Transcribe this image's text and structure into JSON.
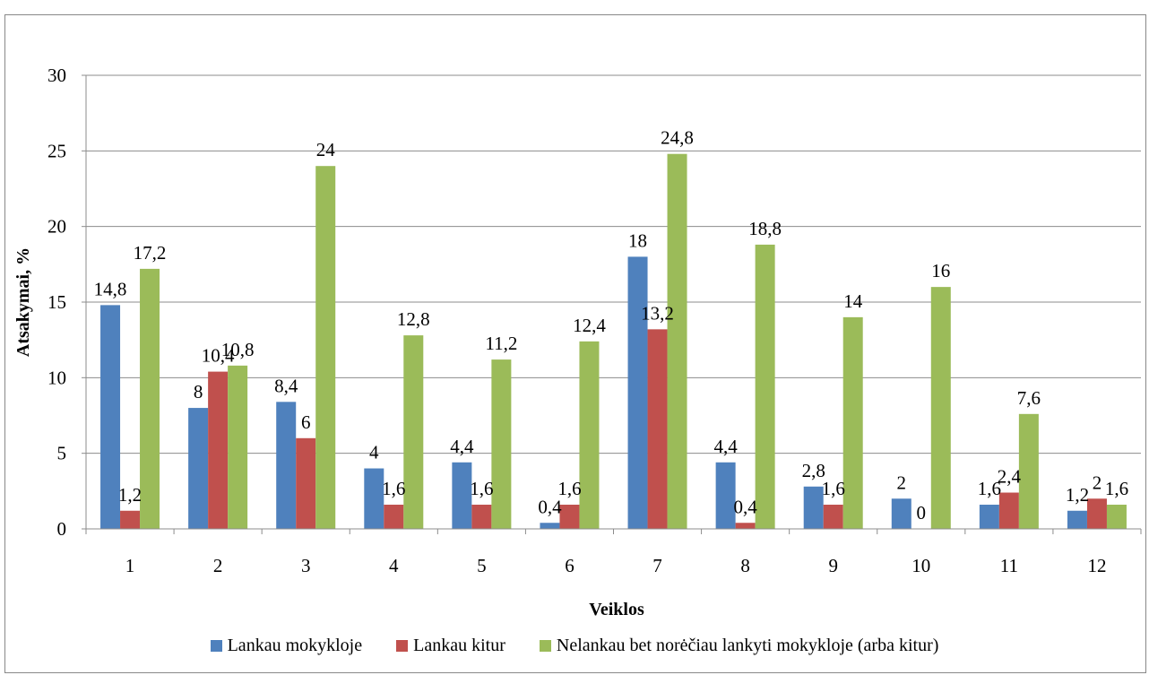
{
  "chart_data": {
    "type": "bar",
    "xlabel": "Veiklos",
    "ylabel": "Atsakymai, %",
    "ylim": [
      0,
      30
    ],
    "yticks": [
      0,
      5,
      10,
      15,
      20,
      25,
      30
    ],
    "grid": true,
    "legend_position": "bottom",
    "categories": [
      "1",
      "2",
      "3",
      "4",
      "5",
      "6",
      "7",
      "8",
      "9",
      "10",
      "11",
      "12"
    ],
    "series": [
      {
        "name": "Lankau mokykloje",
        "color": "#4F81BD",
        "values": [
          14.8,
          8,
          8.4,
          4,
          4.4,
          0.4,
          18,
          4.4,
          2.8,
          2,
          1.6,
          1.2
        ],
        "labels": [
          "14,8",
          "8",
          "8,4",
          "4",
          "4,4",
          "0,4",
          "18",
          "4,4",
          "2,8",
          "2",
          "1,6",
          "1,2"
        ]
      },
      {
        "name": "Lankau kitur",
        "color": "#C0504D",
        "values": [
          1.2,
          10.4,
          6,
          1.6,
          1.6,
          1.6,
          13.2,
          0.4,
          1.6,
          0,
          2.4,
          2
        ],
        "labels": [
          "1,2",
          "10,4",
          "6",
          "1,6",
          "1,6",
          "1,6",
          "13,2",
          "0,4",
          "1,6",
          "0",
          "2,4",
          "2"
        ]
      },
      {
        "name": "Nelankau bet norėčiau lankyti mokykloje (arba kitur)",
        "color": "#9BBB59",
        "values": [
          17.2,
          10.8,
          24,
          12.8,
          11.2,
          12.4,
          24.8,
          18.8,
          14,
          16,
          7.6,
          1.6
        ],
        "labels": [
          "17,2",
          "10,8",
          "24",
          "12,8",
          "11,2",
          "12,4",
          "24,8",
          "18,8",
          "14",
          "16",
          "7,6",
          "1,6"
        ]
      }
    ]
  }
}
